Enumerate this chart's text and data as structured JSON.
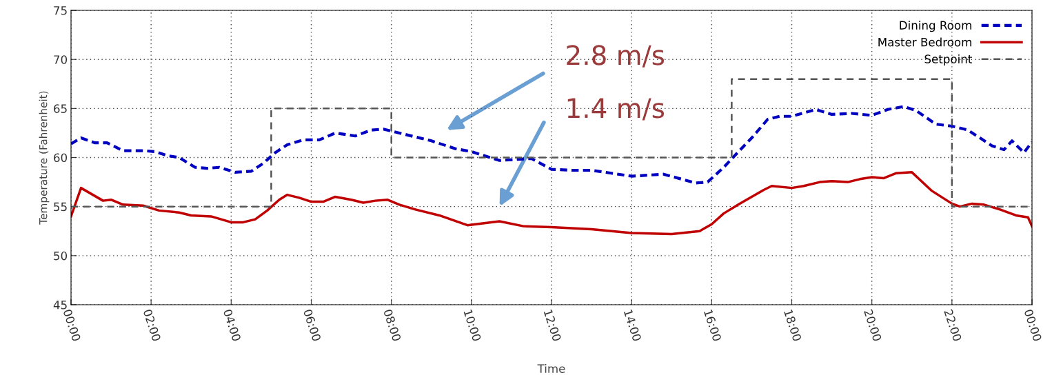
{
  "chart_data": {
    "type": "line",
    "xlabel": "Time",
    "ylabel": "Temperature (Fahrenheit)",
    "xlim": [
      0,
      24
    ],
    "ylim": [
      45,
      75
    ],
    "yticks": [
      45,
      50,
      55,
      60,
      65,
      70,
      75
    ],
    "xticks": [
      {
        "value": 0,
        "label": "00:00"
      },
      {
        "value": 2,
        "label": "02:00"
      },
      {
        "value": 4,
        "label": "04:00"
      },
      {
        "value": 6,
        "label": "06:00"
      },
      {
        "value": 8,
        "label": "08:00"
      },
      {
        "value": 10,
        "label": "10:00"
      },
      {
        "value": 12,
        "label": "12:00"
      },
      {
        "value": 14,
        "label": "14:00"
      },
      {
        "value": 16,
        "label": "16:00"
      },
      {
        "value": 18,
        "label": "18:00"
      },
      {
        "value": 20,
        "label": "20:00"
      },
      {
        "value": 22,
        "label": "22:00"
      },
      {
        "value": 24,
        "label": "00:00"
      }
    ],
    "grid": true,
    "legend": "top right",
    "series": [
      {
        "name": "Dining Room",
        "color": "#0000c0",
        "line_style": "dashed",
        "x": [
          0,
          0.25,
          0.6,
          0.9,
          1.3,
          1.8,
          2.1,
          2.4,
          2.7,
          3.1,
          3.4,
          3.7,
          4.1,
          4.5,
          4.8,
          5.1,
          5.4,
          5.8,
          6.2,
          6.6,
          7.1,
          7.5,
          7.8,
          8.1,
          9.0,
          9.6,
          10.0,
          10.7,
          11.5,
          12.0,
          12.5,
          13.0,
          13.5,
          14.0,
          14.8,
          15.6,
          15.9,
          16.3,
          16.6,
          17.0,
          17.4,
          17.7,
          18.0,
          18.6,
          19.0,
          19.5,
          20.0,
          20.4,
          20.8,
          21.1,
          21.6,
          22.0,
          22.4,
          23.0,
          23.3,
          23.5,
          23.8,
          24.0
        ],
        "values": [
          61.4,
          62.0,
          61.5,
          61.5,
          60.7,
          60.7,
          60.6,
          60.2,
          60.0,
          59.0,
          58.9,
          59.0,
          58.5,
          58.6,
          59.4,
          60.5,
          61.3,
          61.8,
          61.8,
          62.5,
          62.2,
          62.8,
          62.9,
          62.6,
          61.7,
          60.9,
          60.6,
          59.7,
          59.9,
          58.8,
          58.7,
          58.7,
          58.4,
          58.1,
          58.3,
          57.4,
          57.5,
          59.0,
          60.3,
          62.0,
          63.9,
          64.2,
          64.2,
          64.9,
          64.4,
          64.5,
          64.3,
          64.9,
          65.2,
          64.8,
          63.4,
          63.2,
          62.8,
          61.2,
          60.8,
          61.7,
          60.5,
          61.6
        ]
      },
      {
        "name": "Master Bedroom",
        "color": "#c00000",
        "line_style": "solid",
        "x": [
          0,
          0.25,
          0.8,
          1.0,
          1.3,
          1.8,
          2.2,
          2.7,
          3.0,
          3.5,
          4.0,
          4.3,
          4.6,
          4.9,
          5.2,
          5.4,
          5.7,
          6.0,
          6.3,
          6.6,
          7.0,
          7.3,
          7.6,
          7.9,
          8.2,
          8.6,
          9.2,
          9.9,
          10.7,
          11.3,
          12.0,
          13.0,
          14.0,
          15.0,
          15.7,
          16.0,
          16.3,
          16.7,
          17.0,
          17.3,
          17.5,
          18.0,
          18.3,
          18.7,
          19.0,
          19.4,
          19.7,
          20.0,
          20.3,
          20.6,
          21.0,
          21.5,
          22.0,
          22.2,
          22.5,
          22.8,
          23.2,
          23.6,
          23.9,
          24.0
        ],
        "values": [
          54.0,
          56.9,
          55.6,
          55.7,
          55.2,
          55.1,
          54.6,
          54.4,
          54.1,
          54.0,
          53.4,
          53.4,
          53.7,
          54.6,
          55.7,
          56.2,
          55.9,
          55.5,
          55.5,
          56.0,
          55.7,
          55.4,
          55.6,
          55.7,
          55.2,
          54.7,
          54.1,
          53.1,
          53.5,
          53.0,
          52.9,
          52.7,
          52.3,
          52.2,
          52.5,
          53.2,
          54.3,
          55.3,
          56.0,
          56.7,
          57.1,
          56.9,
          57.1,
          57.5,
          57.6,
          57.5,
          57.8,
          58.0,
          57.9,
          58.4,
          58.5,
          56.6,
          55.3,
          55.0,
          55.3,
          55.2,
          54.7,
          54.1,
          53.9,
          53.0
        ]
      },
      {
        "name": "Setpoint",
        "type": "step",
        "color": "#555555",
        "line_style": "dashed",
        "x": [
          0,
          5,
          8,
          16.5,
          22,
          24
        ],
        "values": [
          55,
          65,
          60,
          68,
          55,
          55
        ]
      }
    ],
    "annotations": [
      "2.8 m/s",
      "1.4 m/s"
    ]
  }
}
